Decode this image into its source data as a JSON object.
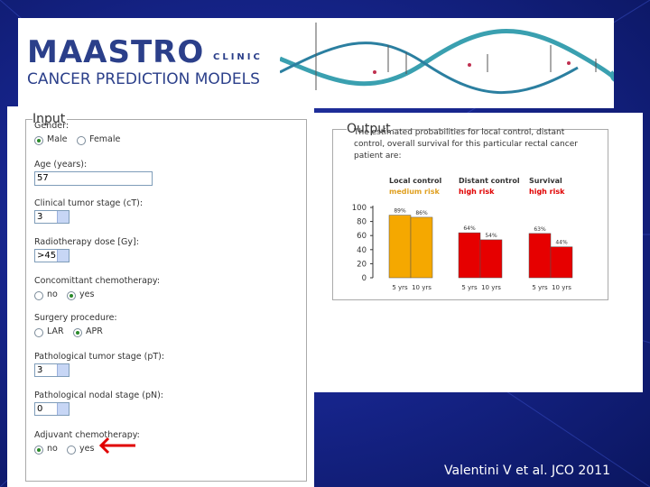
{
  "header": {
    "logo": "MAASTRO",
    "logo_sub": "CLINIC",
    "subtitle": "CANCER PREDICTION MODELS"
  },
  "input": {
    "legend": "Input",
    "fields": [
      {
        "label": "Gender:",
        "options": [
          "Male",
          "Female"
        ],
        "selected": 0
      },
      {
        "label": "Age (years):",
        "value": "57"
      },
      {
        "label": "Clinical tumor stage (cT):",
        "value": "3"
      },
      {
        "label": "Radiotherapy dose [Gy]:",
        "value": ">45"
      },
      {
        "label": "Concomittant chemotherapy:",
        "options": [
          "no",
          "yes"
        ],
        "selected": 1
      },
      {
        "label": "Surgery procedure:",
        "options": [
          "LAR",
          "APR"
        ],
        "selected": 1
      },
      {
        "label": "Pathological tumor stage (pT):",
        "value": "3"
      },
      {
        "label": "Pathological nodal stage (pN):",
        "value": "0"
      },
      {
        "label": "Adjuvant chemotherapy:",
        "options": [
          "no",
          "yes"
        ],
        "selected": 0
      }
    ]
  },
  "output": {
    "legend": "Output",
    "text": "The estimated probabilities for local control, distant control, overall survival for this particular rectal cancer patient are:"
  },
  "chart_data": {
    "type": "bar",
    "categories": [
      "Local control",
      "Distant control",
      "Survival"
    ],
    "risk": [
      "medium risk",
      "high risk",
      "high risk"
    ],
    "colors": [
      "#f5a800",
      "#e60000",
      "#e60000"
    ],
    "risk_colors": [
      "#e0a020",
      "#e00000",
      "#e00000"
    ],
    "series": [
      {
        "name": "5 yrs",
        "values": [
          89,
          64,
          63
        ],
        "value_labels": [
          "89%",
          "64%",
          "63%"
        ]
      },
      {
        "name": "10 yrs",
        "values": [
          86,
          54,
          44
        ],
        "value_labels": [
          "86%",
          "54%",
          "44%"
        ]
      }
    ],
    "ylim": [
      0,
      100
    ],
    "yticks": [
      0,
      20,
      40,
      60,
      80,
      100
    ]
  },
  "citation": "Valentini V  et al. JCO 2011"
}
